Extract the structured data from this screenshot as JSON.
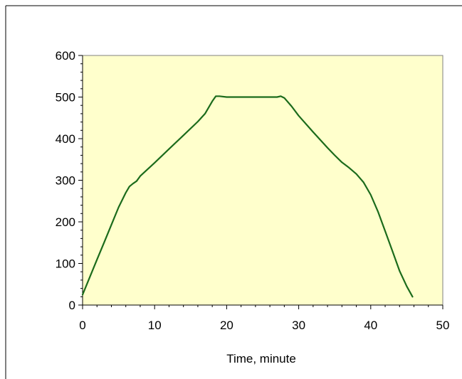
{
  "chart_data": {
    "type": "line",
    "title": "",
    "xlabel": "Time, minute",
    "ylabel": "",
    "xlim": [
      0,
      50
    ],
    "ylim": [
      0,
      600
    ],
    "x_ticks": [
      0,
      10,
      20,
      30,
      40,
      50
    ],
    "y_ticks": [
      0,
      100,
      200,
      300,
      400,
      500,
      600
    ],
    "x_tick_labels": [
      "0",
      "10",
      "20",
      "30",
      "40",
      "50"
    ],
    "y_tick_labels": [
      "0",
      "100",
      "200",
      "300",
      "400",
      "500",
      "600"
    ],
    "grid": false,
    "legend": "none",
    "colors": {
      "plot_background": "#FFFFCC",
      "line": "#1B6B1B",
      "axis": "#000000",
      "frame": "#808080"
    },
    "series": [
      {
        "x": [
          0,
          1,
          2,
          3,
          4,
          5,
          6,
          6.5,
          7,
          7.5,
          8,
          10,
          12,
          14,
          16,
          17,
          18,
          18.5,
          19,
          20,
          22,
          24,
          26,
          27,
          27.5,
          28,
          29,
          30,
          32,
          34,
          35,
          36,
          37,
          38,
          39,
          40,
          41,
          42,
          43,
          44,
          45,
          45.8
        ],
        "y": [
          25,
          67,
          109,
          151,
          193,
          235,
          270,
          285,
          292,
          298,
          310,
          342,
          375,
          408,
          441,
          460,
          490,
          502,
          502,
          500,
          500,
          500,
          500,
          500,
          502,
          498,
          478,
          455,
          416,
          378,
          360,
          343,
          330,
          315,
          295,
          265,
          225,
          178,
          130,
          82,
          45,
          20
        ]
      }
    ]
  }
}
